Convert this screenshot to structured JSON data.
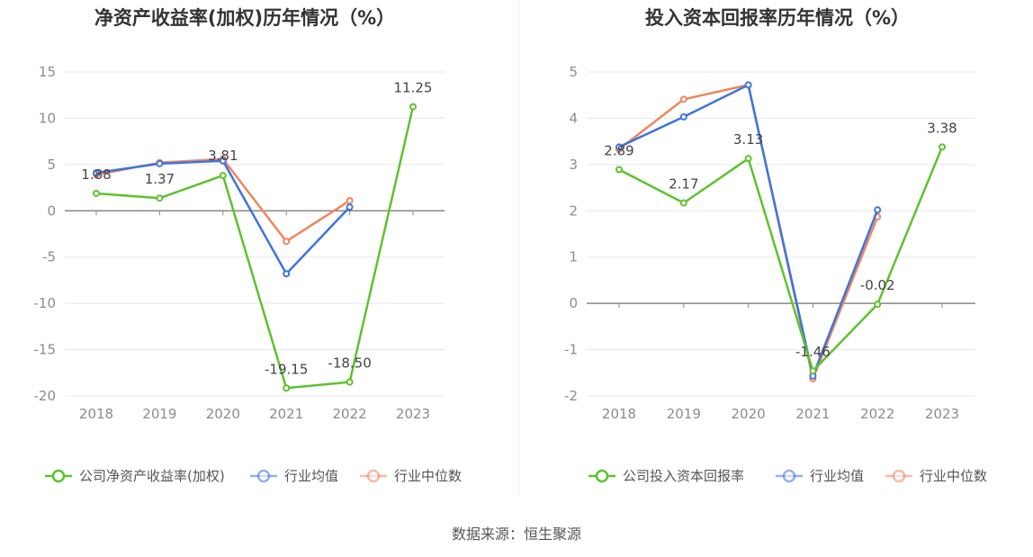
{
  "colors": {
    "company": "#5ec22e",
    "avg": "#3f75dc",
    "median": "#f0855c"
  },
  "chart_data": [
    {
      "type": "line",
      "title": "净资产收益率(加权)历年情况（%）",
      "categories": [
        "2018",
        "2019",
        "2020",
        "2021",
        "2022",
        "2023"
      ],
      "ylim": [
        -20,
        15
      ],
      "yticks": [
        15,
        10,
        5,
        0,
        -5,
        -10,
        -15,
        -20
      ],
      "series": [
        {
          "name": "公司净资产收益率(加权)",
          "values": [
            1.88,
            1.37,
            3.81,
            -19.15,
            -18.5,
            11.25
          ],
          "labels": [
            "1.88",
            "1.37",
            "3.81",
            "-19.15",
            "-18.50",
            "11.25"
          ]
        },
        {
          "name": "行业均值",
          "values": [
            4.1,
            5.1,
            5.4,
            -6.8,
            0.4,
            null
          ]
        },
        {
          "name": "行业中位数",
          "values": [
            3.9,
            5.2,
            5.6,
            -3.3,
            1.1,
            null
          ]
        }
      ]
    },
    {
      "type": "line",
      "title": "投入资本回报率历年情况（%）",
      "categories": [
        "2018",
        "2019",
        "2020",
        "2021",
        "2022",
        "2023"
      ],
      "ylim": [
        -2,
        5
      ],
      "yticks": [
        5,
        4,
        3,
        2,
        1,
        0,
        -1,
        -2
      ],
      "series": [
        {
          "name": "公司投入资本回报率",
          "values": [
            2.89,
            2.17,
            3.13,
            -1.46,
            -0.02,
            3.38
          ],
          "labels": [
            "2.89",
            "2.17",
            "3.13",
            "-1.46",
            "-0.02",
            "3.38"
          ]
        },
        {
          "name": "行业均值",
          "values": [
            3.38,
            4.03,
            4.72,
            -1.57,
            2.02,
            null
          ]
        },
        {
          "name": "行业中位数",
          "values": [
            3.33,
            4.41,
            4.72,
            -1.63,
            1.87,
            null
          ]
        }
      ]
    }
  ],
  "source": "数据来源：恒生聚源"
}
